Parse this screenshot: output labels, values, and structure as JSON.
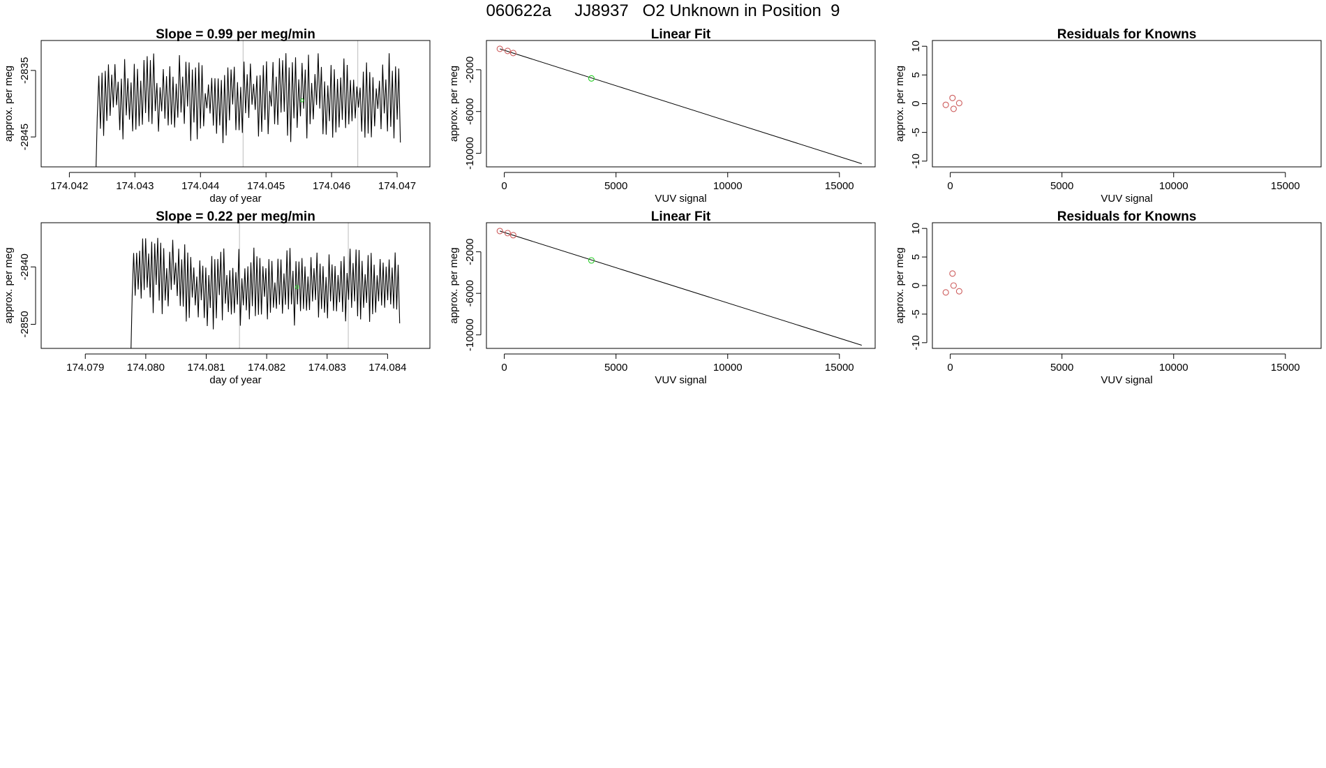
{
  "page_title": "060622a     JJ8937   O2 Unknown in Position  9",
  "colors": {
    "trace": "#000000",
    "known": "#cd5c5c",
    "unknown": "#22cc22",
    "marker_line": "#bbbbbb",
    "axis": "#000000"
  },
  "chart_data": [
    {
      "id": "trace-1",
      "type": "line",
      "title": "Slope =  0.99  per meg/min",
      "xlabel": "day of year",
      "ylabel": "approx. per meg",
      "xlim": [
        174.04157,
        174.0475
      ],
      "ylim": [
        -2849.5,
        -2830.5
      ],
      "xticks": [
        174.042,
        174.043,
        174.044,
        174.045,
        174.046,
        174.047
      ],
      "xtick_labels": [
        "174.042",
        "174.043",
        "174.044",
        "174.045",
        "174.046",
        "174.047"
      ],
      "yticks": [
        -2835,
        -2845
      ],
      "ytick_labels": [
        "-2835",
        "-2845"
      ],
      "trace": {
        "x_start": 174.0424,
        "x_end": 174.04705,
        "n": 190,
        "mean": -2839.0,
        "amp": 5.5,
        "seed": 7
      },
      "markers": [
        174.04465,
        174.0464
      ],
      "unknown_point": {
        "x": 174.04555,
        "y": -2839.5
      }
    },
    {
      "id": "fit-1",
      "type": "scatter",
      "title": "Linear Fit",
      "xlabel": "VUV signal",
      "ylabel": "approx. per meg",
      "xlim": [
        -800,
        16600
      ],
      "ylim": [
        -11300,
        800
      ],
      "xticks": [
        0,
        5000,
        10000,
        15000
      ],
      "xtick_labels": [
        "0",
        "5000",
        "10000",
        "15000"
      ],
      "yticks": [
        -2000,
        -6000,
        -10000
      ],
      "ytick_labels": [
        "-2000",
        "-6000",
        "-10000"
      ],
      "known": [
        {
          "x": -200,
          "y": 0
        },
        {
          "x": 150,
          "y": -200
        },
        {
          "x": 400,
          "y": -400
        }
      ],
      "unknown": [
        {
          "x": 3900,
          "y": -2830
        }
      ],
      "fit_line": {
        "x": [
          -200,
          16000
        ],
        "y": [
          0,
          -11000
        ]
      }
    },
    {
      "id": "resid-1",
      "type": "scatter",
      "title": "Residuals for Knowns",
      "xlabel": "VUV signal",
      "ylabel": "approx. per meg",
      "xlim": [
        -800,
        16600
      ],
      "ylim": [
        -11,
        11
      ],
      "xticks": [
        0,
        5000,
        10000,
        15000
      ],
      "xtick_labels": [
        "0",
        "5000",
        "10000",
        "15000"
      ],
      "yticks": [
        10,
        5,
        0,
        -5,
        -10
      ],
      "ytick_labels": [
        "10",
        "5",
        "0",
        "-5",
        "-10"
      ],
      "known": [
        {
          "x": -200,
          "y": -0.2
        },
        {
          "x": 100,
          "y": 1.0
        },
        {
          "x": 150,
          "y": -0.9
        },
        {
          "x": 400,
          "y": 0.1
        }
      ]
    },
    {
      "id": "trace-2",
      "type": "line",
      "title": "Slope =  0.22  per meg/min",
      "xlabel": "day of year",
      "ylabel": "approx. per meg",
      "xlim": [
        174.07827,
        174.0847
      ],
      "ylim": [
        -2854.2,
        -2832.3
      ],
      "xticks": [
        174.079,
        174.08,
        174.081,
        174.082,
        174.083,
        174.084
      ],
      "xtick_labels": [
        "174.079",
        "174.080",
        "174.081",
        "174.082",
        "174.083",
        "174.084"
      ],
      "yticks": [
        -2840,
        -2850
      ],
      "ytick_labels": [
        "-2840",
        "-2850"
      ],
      "trace": {
        "x_start": 174.07975,
        "x_end": 174.0842,
        "n": 180,
        "mean": -2843.5,
        "amp": 5.5,
        "seed": 13,
        "start_offset": 4.5
      },
      "markers": [
        174.08155,
        174.08335
      ],
      "unknown_point": {
        "x": 174.0825,
        "y": -2843.5
      }
    },
    {
      "id": "fit-2",
      "type": "scatter",
      "title": "Linear Fit",
      "xlabel": "VUV signal",
      "ylabel": "approx. per meg",
      "xlim": [
        -800,
        16600
      ],
      "ylim": [
        -11300,
        800
      ],
      "xticks": [
        0,
        5000,
        10000,
        15000
      ],
      "xtick_labels": [
        "0",
        "5000",
        "10000",
        "15000"
      ],
      "yticks": [
        -2000,
        -6000,
        -10000
      ],
      "ytick_labels": [
        "-2000",
        "-6000",
        "-10000"
      ],
      "known": [
        {
          "x": -200,
          "y": 0
        },
        {
          "x": 150,
          "y": -200
        },
        {
          "x": 400,
          "y": -400
        }
      ],
      "unknown": [
        {
          "x": 3900,
          "y": -2830
        }
      ],
      "fit_line": {
        "x": [
          -200,
          16000
        ],
        "y": [
          0,
          -11000
        ]
      }
    },
    {
      "id": "resid-2",
      "type": "scatter",
      "title": "Residuals for Knowns",
      "xlabel": "VUV signal",
      "ylabel": "approx. per meg",
      "xlim": [
        -800,
        16600
      ],
      "ylim": [
        -11,
        11
      ],
      "xticks": [
        0,
        5000,
        10000,
        15000
      ],
      "xtick_labels": [
        "0",
        "5000",
        "10000",
        "15000"
      ],
      "yticks": [
        10,
        5,
        0,
        -5,
        -10
      ],
      "ytick_labels": [
        "10",
        "5",
        "0",
        "-5",
        "-10"
      ],
      "known": [
        {
          "x": -200,
          "y": -1.2
        },
        {
          "x": 100,
          "y": 2.1
        },
        {
          "x": 150,
          "y": 0.0
        },
        {
          "x": 400,
          "y": -1.0
        }
      ]
    }
  ]
}
